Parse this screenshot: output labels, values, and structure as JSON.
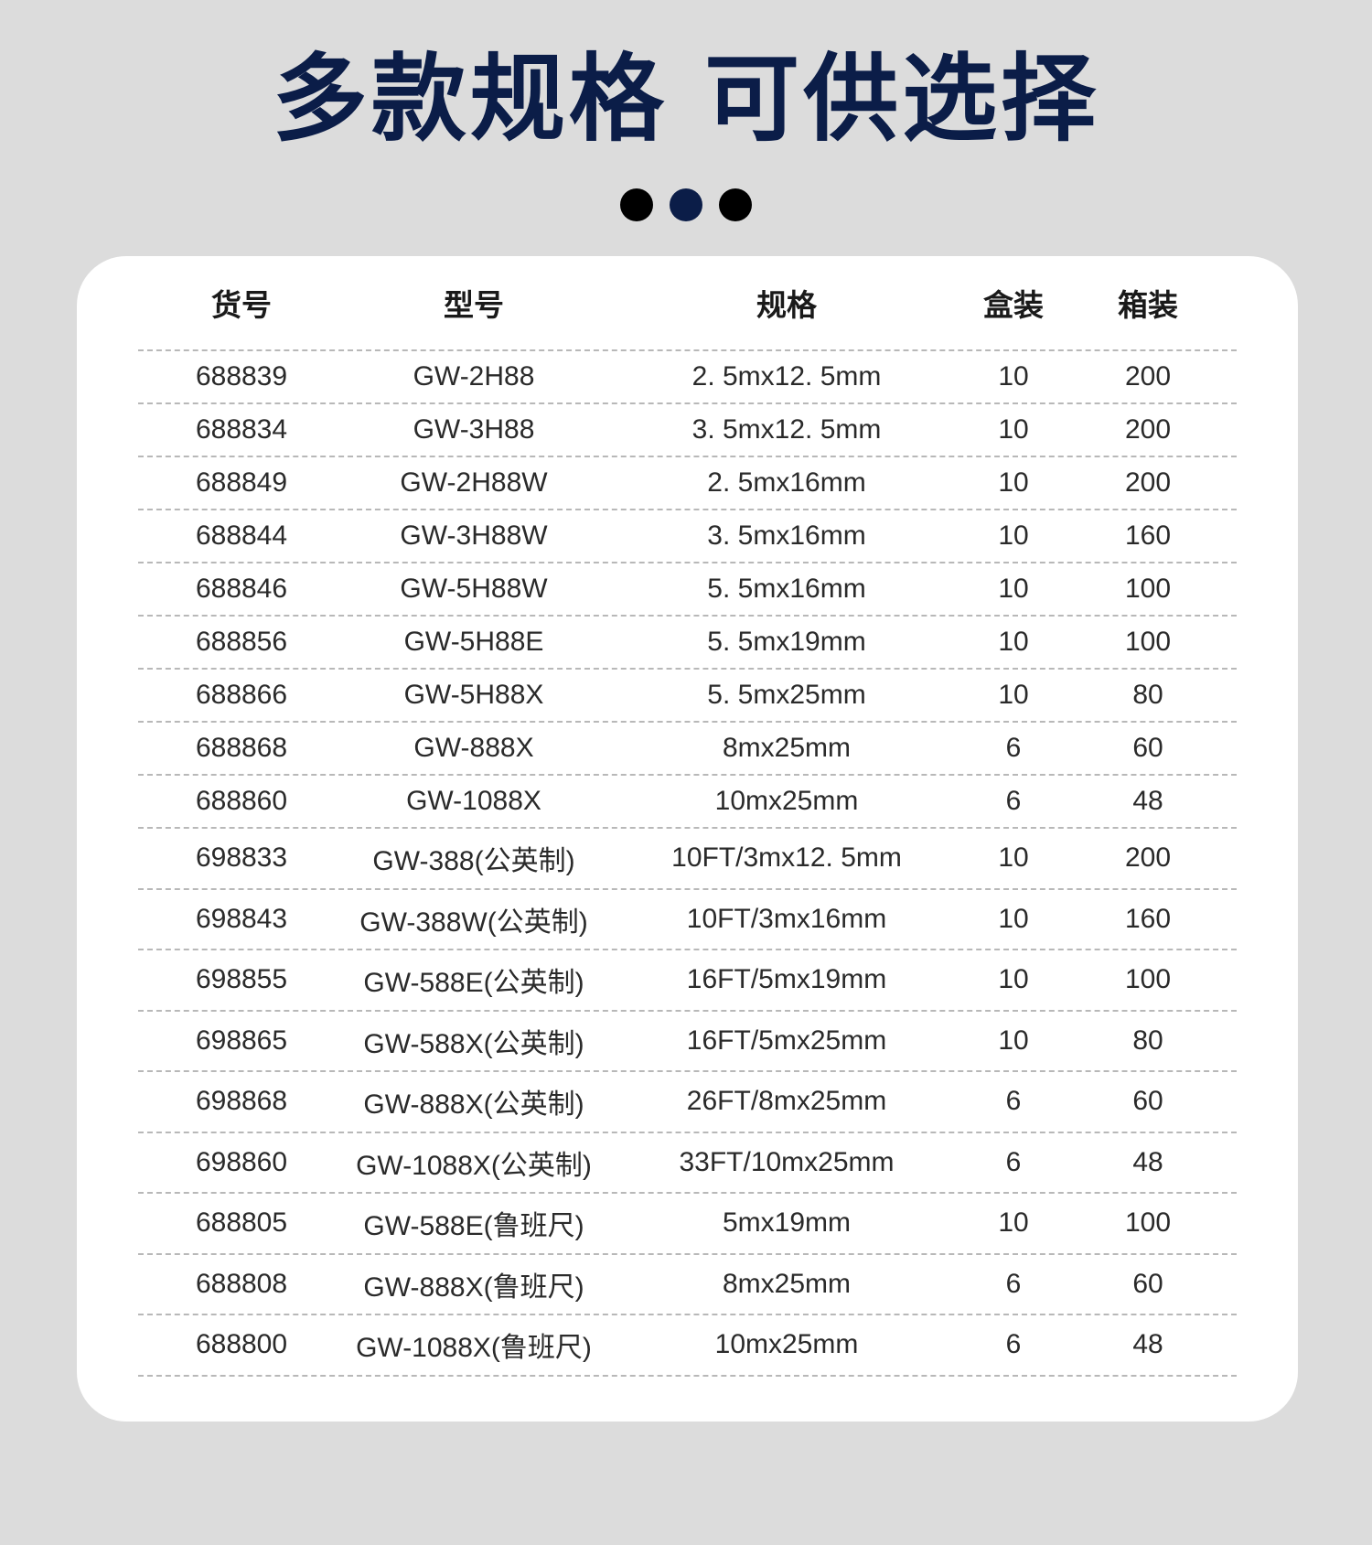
{
  "title": "多款规格 可供选择",
  "dots": [
    "#000000",
    "#0b1d48",
    "#000000"
  ],
  "table": {
    "headers": [
      "货号",
      "型号",
      "规格",
      "盒装",
      "箱装"
    ],
    "rows": [
      [
        "688839",
        "GW-2H88",
        "2. 5mx12. 5mm",
        "10",
        "200"
      ],
      [
        "688834",
        "GW-3H88",
        "3. 5mx12. 5mm",
        "10",
        "200"
      ],
      [
        "688849",
        "GW-2H88W",
        "2. 5mx16mm",
        "10",
        "200"
      ],
      [
        "688844",
        "GW-3H88W",
        "3. 5mx16mm",
        "10",
        "160"
      ],
      [
        "688846",
        "GW-5H88W",
        "5. 5mx16mm",
        "10",
        "100"
      ],
      [
        "688856",
        "GW-5H88E",
        "5. 5mx19mm",
        "10",
        "100"
      ],
      [
        "688866",
        "GW-5H88X",
        "5. 5mx25mm",
        "10",
        "80"
      ],
      [
        "688868",
        "GW-888X",
        "8mx25mm",
        "6",
        "60"
      ],
      [
        "688860",
        "GW-1088X",
        "10mx25mm",
        "6",
        "48"
      ],
      [
        "698833",
        "GW-388(公英制)",
        "10FT/3mx12. 5mm",
        "10",
        "200"
      ],
      [
        "698843",
        "GW-388W(公英制)",
        "10FT/3mx16mm",
        "10",
        "160"
      ],
      [
        "698855",
        "GW-588E(公英制)",
        "16FT/5mx19mm",
        "10",
        "100"
      ],
      [
        "698865",
        "GW-588X(公英制)",
        "16FT/5mx25mm",
        "10",
        "80"
      ],
      [
        "698868",
        "GW-888X(公英制)",
        "26FT/8mx25mm",
        "6",
        "60"
      ],
      [
        "698860",
        "GW-1088X(公英制)",
        "33FT/10mx25mm",
        "6",
        "48"
      ],
      [
        "688805",
        "GW-588E(鲁班尺)",
        "5mx19mm",
        "10",
        "100"
      ],
      [
        "688808",
        "GW-888X(鲁班尺)",
        "8mx25mm",
        "6",
        "60"
      ],
      [
        "688800",
        "GW-1088X(鲁班尺)",
        "10mx25mm",
        "6",
        "48"
      ]
    ]
  }
}
